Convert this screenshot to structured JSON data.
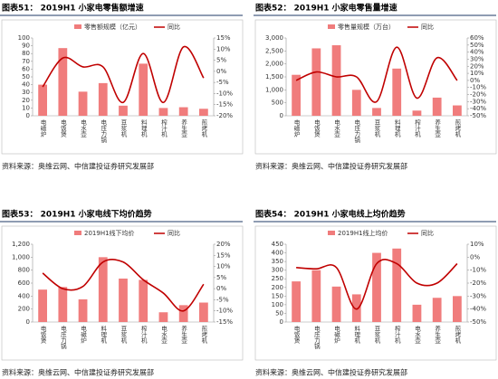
{
  "chart_data": [
    {
      "type": "bar-line",
      "title": "图表51：  2019H1 小家电零售额增速",
      "source": "资料来源：奥维云网、中信建投证券研究发展部",
      "categories": [
        "电磁炉",
        "电饭煲",
        "电水壶",
        "电压力锅",
        "豆浆机",
        "料理机",
        "榨汁机",
        "养生壶",
        "煎烤机"
      ],
      "series": [
        {
          "name": "零售额规模（亿元）",
          "color": "#f07c7c",
          "values": [
            40,
            87,
            31,
            42,
            13,
            67,
            10,
            11,
            9
          ]
        },
        {
          "name": "同比",
          "color": "#c00000",
          "axis": "y2",
          "values": [
            -7,
            6,
            2,
            2,
            -14,
            8,
            -14,
            11,
            -3
          ]
        }
      ],
      "ylim": [
        0,
        100
      ],
      "yticks": [
        0,
        10,
        20,
        30,
        40,
        50,
        60,
        70,
        80,
        90,
        100
      ],
      "y2lim": [
        -20,
        15
      ],
      "y2ticks": [
        {
          "value": -20,
          "label": "-20%"
        },
        {
          "value": -15,
          "label": "-15%"
        },
        {
          "value": -10,
          "label": "-10%"
        },
        {
          "value": -5,
          "label": "-5%"
        },
        {
          "value": 0,
          "label": "0%"
        },
        {
          "value": 5,
          "label": "5%"
        },
        {
          "value": 10,
          "label": "10%"
        },
        {
          "value": 15,
          "label": "15%"
        }
      ]
    },
    {
      "type": "bar-line",
      "title": "图表52：  2019H1 小家电零售量增速",
      "source": "资料来源：奥维云网、中信建投证券研究发展部",
      "categories": [
        "电磁炉",
        "电饭煲",
        "电水壶",
        "电压力锅",
        "豆浆机",
        "料理机",
        "榨汁机",
        "养生壶",
        "煎烤机"
      ],
      "series": [
        {
          "name": "零售量规模（万台）",
          "color": "#f07c7c",
          "values": [
            1580,
            2600,
            2720,
            1000,
            300,
            1820,
            200,
            700,
            400
          ]
        },
        {
          "name": "同比",
          "color": "#c00000",
          "axis": "y2",
          "values": [
            0,
            12,
            5,
            5,
            -30,
            47,
            -25,
            32,
            0
          ]
        }
      ],
      "ylim": [
        0,
        3000
      ],
      "yticks": [
        0,
        500,
        {
          "value": 1000,
          "label": "1,000"
        },
        {
          "value": 1500,
          "label": "1,500"
        },
        {
          "value": 2000,
          "label": "2,000"
        },
        {
          "value": 2500,
          "label": "2,500"
        },
        {
          "value": 3000,
          "label": "3,000"
        }
      ],
      "y2lim": [
        -50,
        60
      ],
      "y2ticks": [
        {
          "value": -50,
          "label": "-50%"
        },
        {
          "value": -40,
          "label": "-40%"
        },
        {
          "value": -30,
          "label": "-30%"
        },
        {
          "value": -20,
          "label": "-20%"
        },
        {
          "value": -10,
          "label": "-10%"
        },
        {
          "value": 0,
          "label": "0%"
        },
        {
          "value": 10,
          "label": "10%"
        },
        {
          "value": 20,
          "label": "20%"
        },
        {
          "value": 30,
          "label": "30%"
        },
        {
          "value": 40,
          "label": "40%"
        },
        {
          "value": 50,
          "label": "50%"
        },
        {
          "value": 60,
          "label": "60%"
        }
      ]
    },
    {
      "type": "bar-line",
      "title": "图表53：  2019H1 小家电线下均价趋势",
      "source": "资料来源：奥维云网、中信建投证券研究发展部",
      "categories": [
        "电饭煲",
        "电压力锅",
        "电磁炉",
        "料理机",
        "豆浆机",
        "榨汁机",
        "电水壶",
        "养生壶",
        "煎烤机"
      ],
      "series": [
        {
          "name": "2019H1线下均价",
          "color": "#f07c7c",
          "values": [
            500,
            540,
            350,
            1000,
            670,
            650,
            150,
            260,
            300
          ]
        },
        {
          "name": "同比",
          "color": "#c00000",
          "axis": "y2",
          "values": [
            7,
            0,
            1,
            12,
            12,
            4,
            -2,
            -10,
            2
          ]
        }
      ],
      "ylim": [
        0,
        1200
      ],
      "yticks": [
        0,
        200,
        400,
        600,
        800,
        {
          "value": 1000,
          "label": "1,000"
        },
        {
          "value": 1200,
          "label": "1,200"
        }
      ],
      "y2lim": [
        -15,
        20
      ],
      "y2ticks": [
        {
          "value": -15,
          "label": "-15%"
        },
        {
          "value": -10,
          "label": "-10%"
        },
        {
          "value": -5,
          "label": "-5%"
        },
        {
          "value": 0,
          "label": "0%"
        },
        {
          "value": 5,
          "label": "5%"
        },
        {
          "value": 10,
          "label": "10%"
        },
        {
          "value": 15,
          "label": "15%"
        },
        {
          "value": 20,
          "label": "20%"
        }
      ]
    },
    {
      "type": "bar-line",
      "title": "图表54：  2019H1 小家电线上均价趋势",
      "source": "资料来源：奥维云网、中信建投证券研究发展部",
      "categories": [
        "电饭煲",
        "电压力锅",
        "电磁炉",
        "料理机",
        "豆浆机",
        "榨汁机",
        "电水壶",
        "养生壶",
        "煎烤机"
      ],
      "series": [
        {
          "name": "2019H1线上均价",
          "color": "#f07c7c",
          "values": [
            235,
            300,
            205,
            160,
            400,
            425,
            100,
            140,
            150
          ]
        },
        {
          "name": "同比",
          "color": "#c00000",
          "axis": "y2",
          "values": [
            -8,
            -9,
            -8,
            -40,
            -5,
            -5,
            -20,
            -20,
            -5
          ]
        }
      ],
      "ylim": [
        0,
        450
      ],
      "yticks": [
        0,
        50,
        100,
        150,
        200,
        250,
        300,
        350,
        400,
        450
      ],
      "y2lim": [
        -50,
        10
      ],
      "y2ticks": [
        {
          "value": -50,
          "label": "-50%"
        },
        {
          "value": -40,
          "label": "-40%"
        },
        {
          "value": -30,
          "label": "-30%"
        },
        {
          "value": -20,
          "label": "-20%"
        },
        {
          "value": -10,
          "label": "-10%"
        },
        {
          "value": 0,
          "label": "0%"
        },
        {
          "value": 10,
          "label": "10%"
        }
      ]
    }
  ]
}
